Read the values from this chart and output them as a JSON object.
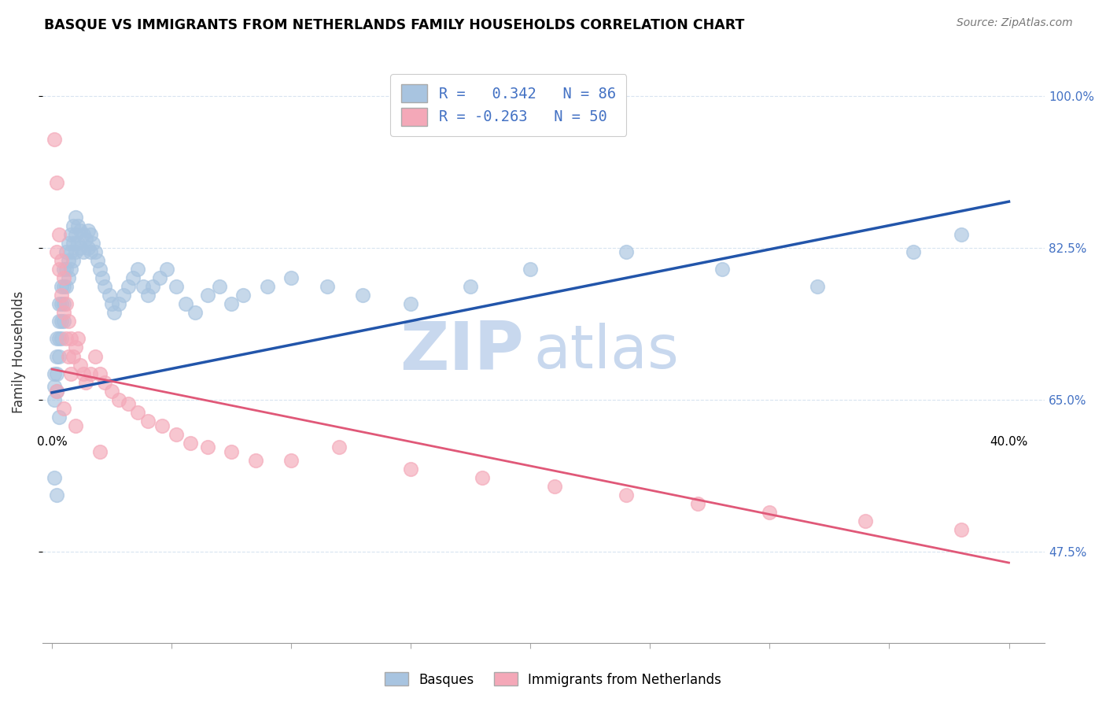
{
  "title": "BASQUE VS IMMIGRANTS FROM NETHERLANDS FAMILY HOUSEHOLDS CORRELATION CHART",
  "source": "Source: ZipAtlas.com",
  "ylabel": "Family Households",
  "basque_color": "#a8c4e0",
  "netherlands_color": "#f4a8b8",
  "trend_blue": "#2255aa",
  "trend_pink": "#e05878",
  "watermark_zip": "ZIP",
  "watermark_atlas": "atlas",
  "watermark_color": "#c8d8ee",
  "blue_r": " 0.342",
  "blue_n": "86",
  "pink_r": "-0.263",
  "pink_n": "50",
  "blue_line_x": [
    0.0,
    0.4
  ],
  "blue_line_y": [
    0.658,
    0.878
  ],
  "pink_line_x": [
    0.0,
    0.4
  ],
  "pink_line_y": [
    0.685,
    0.462
  ],
  "basque_x": [
    0.001,
    0.001,
    0.001,
    0.002,
    0.002,
    0.002,
    0.002,
    0.003,
    0.003,
    0.003,
    0.003,
    0.004,
    0.004,
    0.004,
    0.004,
    0.005,
    0.005,
    0.005,
    0.005,
    0.006,
    0.006,
    0.006,
    0.007,
    0.007,
    0.007,
    0.008,
    0.008,
    0.008,
    0.009,
    0.009,
    0.009,
    0.01,
    0.01,
    0.01,
    0.011,
    0.011,
    0.012,
    0.012,
    0.013,
    0.013,
    0.014,
    0.015,
    0.015,
    0.016,
    0.016,
    0.017,
    0.018,
    0.019,
    0.02,
    0.021,
    0.022,
    0.024,
    0.025,
    0.026,
    0.028,
    0.03,
    0.032,
    0.034,
    0.036,
    0.038,
    0.04,
    0.042,
    0.045,
    0.048,
    0.052,
    0.056,
    0.06,
    0.065,
    0.07,
    0.075,
    0.08,
    0.09,
    0.1,
    0.115,
    0.13,
    0.15,
    0.175,
    0.2,
    0.24,
    0.28,
    0.32,
    0.36,
    0.38,
    0.001,
    0.002,
    0.003
  ],
  "basque_y": [
    0.68,
    0.665,
    0.65,
    0.72,
    0.7,
    0.68,
    0.66,
    0.76,
    0.74,
    0.72,
    0.7,
    0.78,
    0.76,
    0.74,
    0.72,
    0.8,
    0.78,
    0.76,
    0.74,
    0.82,
    0.8,
    0.78,
    0.83,
    0.81,
    0.79,
    0.84,
    0.82,
    0.8,
    0.85,
    0.83,
    0.81,
    0.86,
    0.84,
    0.82,
    0.85,
    0.83,
    0.845,
    0.825,
    0.84,
    0.82,
    0.835,
    0.845,
    0.825,
    0.84,
    0.82,
    0.83,
    0.82,
    0.81,
    0.8,
    0.79,
    0.78,
    0.77,
    0.76,
    0.75,
    0.76,
    0.77,
    0.78,
    0.79,
    0.8,
    0.78,
    0.77,
    0.78,
    0.79,
    0.8,
    0.78,
    0.76,
    0.75,
    0.77,
    0.78,
    0.76,
    0.77,
    0.78,
    0.79,
    0.78,
    0.77,
    0.76,
    0.78,
    0.8,
    0.82,
    0.8,
    0.78,
    0.82,
    0.84,
    0.56,
    0.54,
    0.63
  ],
  "netherlands_x": [
    0.001,
    0.002,
    0.002,
    0.003,
    0.003,
    0.004,
    0.004,
    0.005,
    0.005,
    0.006,
    0.006,
    0.007,
    0.007,
    0.008,
    0.008,
    0.009,
    0.01,
    0.011,
    0.012,
    0.013,
    0.014,
    0.016,
    0.018,
    0.02,
    0.022,
    0.025,
    0.028,
    0.032,
    0.036,
    0.04,
    0.046,
    0.052,
    0.058,
    0.065,
    0.075,
    0.085,
    0.1,
    0.12,
    0.15,
    0.18,
    0.21,
    0.24,
    0.27,
    0.3,
    0.34,
    0.38,
    0.002,
    0.005,
    0.01,
    0.02
  ],
  "netherlands_y": [
    0.95,
    0.9,
    0.82,
    0.84,
    0.8,
    0.81,
    0.77,
    0.79,
    0.75,
    0.76,
    0.72,
    0.74,
    0.7,
    0.72,
    0.68,
    0.7,
    0.71,
    0.72,
    0.69,
    0.68,
    0.67,
    0.68,
    0.7,
    0.68,
    0.67,
    0.66,
    0.65,
    0.645,
    0.635,
    0.625,
    0.62,
    0.61,
    0.6,
    0.595,
    0.59,
    0.58,
    0.58,
    0.595,
    0.57,
    0.56,
    0.55,
    0.54,
    0.53,
    0.52,
    0.51,
    0.5,
    0.66,
    0.64,
    0.62,
    0.59
  ],
  "xlim": [
    -0.004,
    0.415
  ],
  "ylim": [
    0.37,
    1.04
  ],
  "ytick_vals": [
    0.475,
    0.65,
    0.825,
    1.0
  ],
  "ytick_labels": [
    "47.5%",
    "65.0%",
    "82.5%",
    "100.0%"
  ],
  "grid_color": "#d8e4f0",
  "right_tick_color": "#4472c4"
}
